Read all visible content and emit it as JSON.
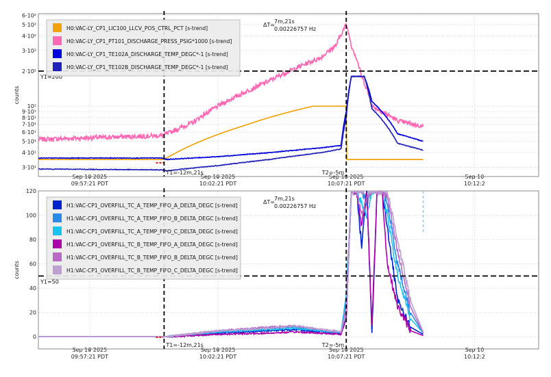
{
  "chart_data": [
    {
      "type": "line",
      "ylabel": "counts",
      "yscale": "log",
      "ylim": [
        25,
        620
      ],
      "y_ticks": [
        {
          "v": 30,
          "label": "3·10¹"
        },
        {
          "v": 40,
          "label": "4·10¹"
        },
        {
          "v": 50,
          "label": "5·10¹"
        },
        {
          "v": 60,
          "label": "6·10¹"
        },
        {
          "v": 70,
          "label": "7·10¹"
        },
        {
          "v": 80,
          "label": "8·10¹"
        },
        {
          "v": 90,
          "label": "9·10¹"
        },
        {
          "v": 100,
          "label": "10²"
        },
        {
          "v": 200,
          "label": "2·10²"
        },
        {
          "v": 300,
          "label": "3·10²"
        },
        {
          "v": 400,
          "label": "4·10²"
        },
        {
          "v": 500,
          "label": "5·10²"
        },
        {
          "v": 600,
          "label": "6·10²"
        }
      ],
      "xlim": [
        0,
        19.5
      ],
      "x_ticks": [
        {
          "v": 2,
          "line1": "Sep 10 2025",
          "line2": "09:57:21 PDT"
        },
        {
          "v": 7,
          "line1": "Sep 10 2025",
          "line2": "10:02:21 PDT"
        },
        {
          "v": 12,
          "line1": "Sep 10 2025",
          "line2": "10:07:21 PDT"
        },
        {
          "v": 17,
          "line1": "Sep 10",
          "line2": "10:12:2"
        }
      ],
      "cursors": {
        "t1_x": 4.9,
        "t2_x": 12.0,
        "t1_label": "T1=-12m,21s",
        "t2_label": "T2=-5m",
        "y1": 200,
        "y1_label": "Y1=200",
        "delta_label": "ΔT=",
        "delta_value": "7m,21s",
        "delta_freq": "0.00226757 Hz"
      },
      "series": [
        {
          "name": "H0:VAC-LY_CP1_LIC100_LLCV_POS_CTRL_PCT [s-trend]",
          "color": "#f0a30a",
          "kind": "pct",
          "x": [
            0,
            4.8,
            4.9,
            6.5,
            8,
            9.5,
            10.7,
            12,
            12.01,
            15
          ],
          "y": [
            35,
            35,
            35,
            52,
            68,
            86,
            100,
            100,
            35,
            35
          ]
        },
        {
          "name": "H0:VAC-LY_CP1_PT101_DISCHARGE_PRESS_PSIG*1000 [s-trend]",
          "color": "#ff69b4",
          "kind": "press",
          "x": [
            0,
            4.8,
            5.0,
            6,
            7,
            8,
            9,
            10,
            11,
            11.6,
            12,
            12.2,
            12.6,
            13,
            14,
            15
          ],
          "y": [
            52,
            56,
            58,
            72,
            100,
            130,
            165,
            210,
            260,
            330,
            500,
            330,
            180,
            100,
            75,
            67
          ]
        },
        {
          "name": "H0:VAC-LY_CP1_TE102A_DISCHARGE_TEMP_DEGC*-1 [s-trend]",
          "color": "#0000dd",
          "kind": "tempA",
          "x": [
            0,
            4.8,
            5.0,
            7,
            9,
            11,
            11.8,
            12.0,
            12.2,
            12.7,
            13,
            14,
            15
          ],
          "y": [
            36,
            36,
            35,
            37,
            40,
            44,
            46,
            90,
            180,
            180,
            110,
            58,
            50
          ]
        },
        {
          "name": "H0:VAC-LY_CP1_TE102B_DISCHARGE_TEMP_DEGC*-1 [s-trend]",
          "color": "#2222bb",
          "kind": "tempB",
          "x": [
            0,
            4.8,
            5.0,
            7,
            9,
            11,
            11.8,
            12.0,
            12.2,
            12.7,
            13,
            14,
            15
          ],
          "y": [
            29,
            28.5,
            28,
            31,
            35,
            40,
            43,
            80,
            180,
            180,
            95,
            48,
            42
          ]
        }
      ]
    },
    {
      "type": "line",
      "ylabel": "counts",
      "yscale": "linear",
      "ylim": [
        -10,
        120
      ],
      "y_ticks": [
        {
          "v": 0,
          "label": "0"
        },
        {
          "v": 20,
          "label": "20"
        },
        {
          "v": 40,
          "label": "40"
        },
        {
          "v": 60,
          "label": "60"
        },
        {
          "v": 80,
          "label": "80"
        },
        {
          "v": 100,
          "label": "100"
        },
        {
          "v": 120,
          "label": "120"
        }
      ],
      "xlim": [
        0,
        19.5
      ],
      "x_ticks": [
        {
          "v": 2,
          "line1": "Sep 10 2025",
          "line2": "09:57:21 PDT"
        },
        {
          "v": 7,
          "line1": "Sep 10 2025",
          "line2": "10:02:21 PDT"
        },
        {
          "v": 12,
          "line1": "Sep 10 2025",
          "line2": "10:07:21 PDT"
        },
        {
          "v": 17,
          "line1": "Sep 10",
          "line2": "10:12:2"
        }
      ],
      "cursors": {
        "t1_x": 4.9,
        "t2_x": 12.0,
        "t1_label": "T1=-12m,21s",
        "t2_label": "T2=-5m",
        "y1": 50,
        "y1_label": "Y1=50",
        "delta_label": "ΔT=",
        "delta_value": "7m,21s",
        "delta_freq": "0.00226757 Hz"
      },
      "series": [
        {
          "name": "H1:VAC-CP1_OVERFILL_TC_A_TEMP_FIFO_A_DELTA_DEGC [s-trend]",
          "color": "#0022cc",
          "x": [
            0,
            4.8,
            5.0,
            7,
            9,
            10,
            11,
            11.8,
            12.0,
            12.2,
            12.4,
            12.6,
            12.8,
            13.0,
            13.2,
            13.4,
            13.6,
            14,
            14.5,
            15
          ],
          "y": [
            0,
            0,
            0,
            3,
            5,
            6,
            4,
            3,
            20,
            120,
            120,
            75,
            120,
            3,
            120,
            120,
            90,
            30,
            8,
            2
          ]
        },
        {
          "name": "H1:VAC-CP1_OVERFILL_TC_A_TEMP_FIFO_B_DELTA_DEGC [s-trend]",
          "color": "#2a8ae8",
          "x": [
            0,
            4.8,
            5.0,
            7,
            9,
            10,
            11,
            11.8,
            12.0,
            12.2,
            12.4,
            12.6,
            12.8,
            13.0,
            13.2,
            13.4,
            13.6,
            14,
            14.5,
            15
          ],
          "y": [
            0,
            0,
            0,
            4,
            7,
            8,
            5,
            3,
            30,
            120,
            120,
            120,
            110,
            120,
            120,
            120,
            110,
            60,
            20,
            3
          ]
        },
        {
          "name": "H1:VAC-CP1_OVERFILL_TC_A_TEMP_FIFO_C_DELTA_DEGC [s-trend]",
          "color": "#19c3f0",
          "x": [
            0,
            4.8,
            5.0,
            7,
            9,
            10,
            11,
            11.8,
            12.0,
            12.2,
            12.4,
            12.6,
            12.8,
            13.0,
            13.2,
            13.4,
            13.6,
            14,
            14.5,
            15
          ],
          "y": [
            0,
            0,
            0,
            4,
            6,
            7,
            5,
            4,
            35,
            120,
            120,
            110,
            100,
            120,
            120,
            120,
            100,
            50,
            15,
            3
          ]
        },
        {
          "name": "H1:VAC-CP1_OVERFILL_TC_B_TEMP_FIFO_A_DELTA_DEGC [s-trend]",
          "color": "#aa00aa",
          "x": [
            0,
            4.8,
            5.0,
            7,
            9,
            10,
            11,
            11.8,
            12.0,
            12.2,
            12.4,
            12.6,
            12.8,
            13.0,
            13.2,
            13.4,
            13.6,
            14,
            14.5,
            15
          ],
          "y": [
            0,
            0,
            0,
            2,
            3,
            4,
            3,
            2,
            15,
            120,
            120,
            90,
            120,
            10,
            120,
            120,
            60,
            25,
            5,
            1
          ]
        },
        {
          "name": "H1:VAC-CP1_OVERFILL_TC_B_TEMP_FIFO_B_DELTA_DEGC [s-trend]",
          "color": "#b968c8",
          "x": [
            0,
            4.8,
            5.0,
            7,
            9,
            10,
            11,
            11.8,
            12.0,
            12.2,
            12.4,
            12.6,
            12.8,
            13.0,
            13.2,
            13.4,
            13.6,
            14,
            14.5,
            15
          ],
          "y": [
            0,
            0,
            0,
            5,
            8,
            9,
            6,
            4,
            25,
            120,
            120,
            100,
            115,
            120,
            120,
            120,
            115,
            70,
            25,
            3
          ]
        },
        {
          "name": "H1:VAC-CP1_OVERFILL_TC_B_TEMP_FIFO_C_DELTA_DEGC [s-trend]",
          "color": "#bba0d0",
          "x": [
            0,
            4.8,
            5.0,
            7,
            9,
            10,
            11,
            11.8,
            12.0,
            12.2,
            12.4,
            12.6,
            12.8,
            13.0,
            13.2,
            13.4,
            13.6,
            14,
            14.5,
            15
          ],
          "y": [
            0,
            0,
            0,
            5,
            7,
            9,
            6,
            4,
            20,
            120,
            120,
            120,
            120,
            120,
            120,
            120,
            120,
            80,
            30,
            4
          ]
        }
      ]
    }
  ]
}
